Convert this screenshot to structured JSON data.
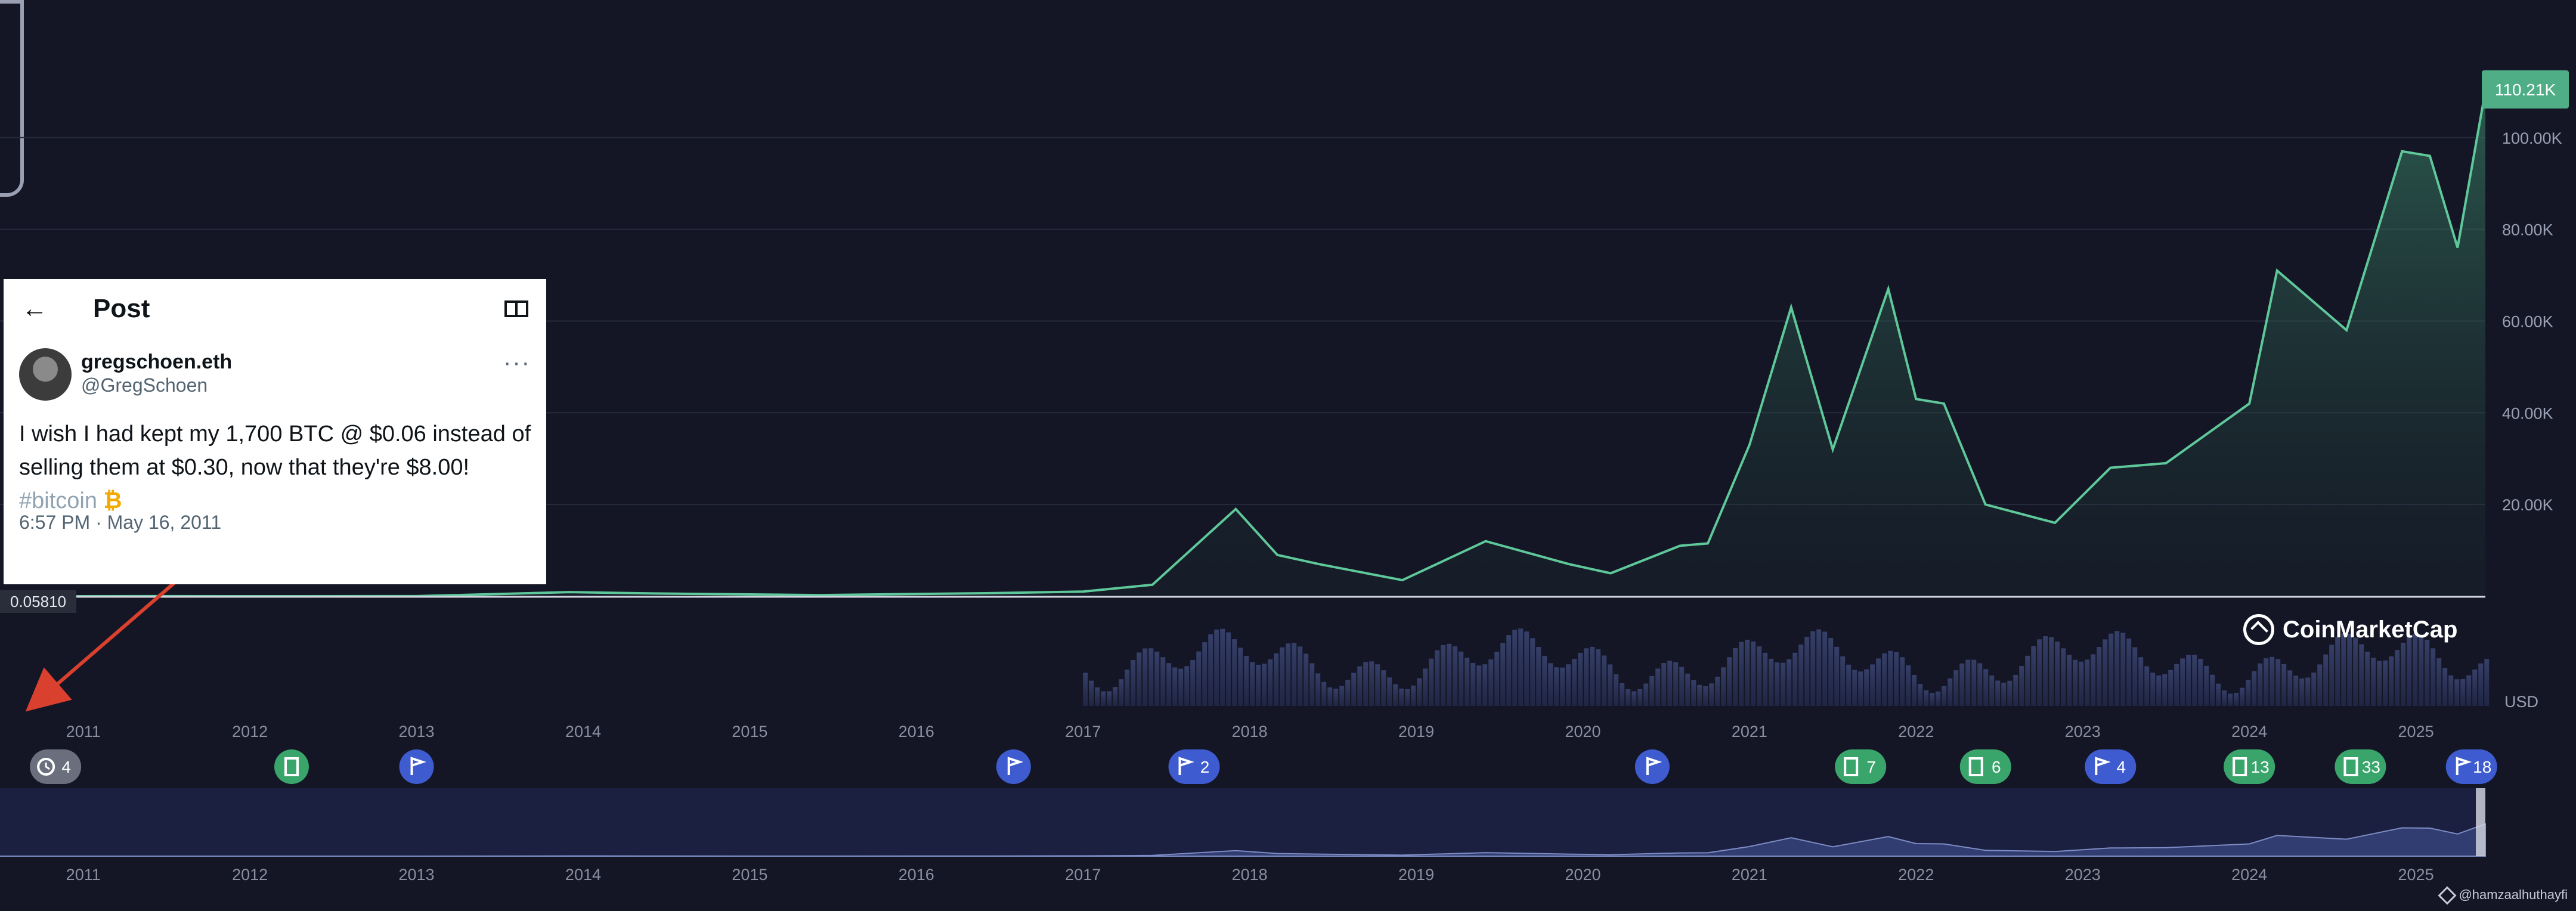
{
  "chart_data": {
    "type": "line",
    "title": "",
    "currency_label": "USD",
    "x": [
      "2010-07",
      "2011-01",
      "2011-06",
      "2012-01",
      "2013-01",
      "2013-12",
      "2014-06",
      "2015-06",
      "2016-06",
      "2017-01",
      "2017-06",
      "2017-12",
      "2018-03",
      "2018-06",
      "2018-12",
      "2019-06",
      "2019-12",
      "2020-03",
      "2020-08",
      "2020-10",
      "2021-01",
      "2021-04",
      "2021-07",
      "2021-11",
      "2022-01",
      "2022-03",
      "2022-06",
      "2022-11",
      "2023-03",
      "2023-07",
      "2024-01",
      "2024-03",
      "2024-08",
      "2024-12",
      "2025-02",
      "2025-04",
      "2025-06"
    ],
    "y": [
      0.06,
      0.3,
      15,
      5,
      15,
      900,
      600,
      250,
      650,
      1000,
      2500,
      19000,
      9000,
      7000,
      3500,
      12000,
      7000,
      5000,
      11000,
      11500,
      33000,
      63000,
      32000,
      67000,
      43000,
      42000,
      20000,
      16000,
      28000,
      29000,
      42000,
      71000,
      58000,
      97000,
      96000,
      76000,
      110210
    ],
    "y_ticks": [
      "20.00K",
      "40.00K",
      "60.00K",
      "80.00K",
      "100.00K"
    ],
    "y_tick_values": [
      20000,
      40000,
      60000,
      80000,
      100000
    ],
    "ylim": [
      0,
      130000
    ],
    "x_tick_labels": [
      "2011",
      "2012",
      "2013",
      "2014",
      "2015",
      "2016",
      "2017",
      "2018",
      "2019",
      "2020",
      "2021",
      "2022",
      "2023",
      "2024",
      "2025"
    ],
    "x_tick_dates": [
      "2011-01",
      "2012-01",
      "2013-01",
      "2014-01",
      "2015-01",
      "2016-01",
      "2017-01",
      "2018-01",
      "2019-01",
      "2020-01",
      "2021-01",
      "2022-01",
      "2023-01",
      "2024-01",
      "2025-01"
    ],
    "navigator_tick_labels": [
      "2011",
      "2012",
      "2013",
      "2014",
      "2015",
      "2016",
      "2017",
      "2018",
      "2019",
      "2020",
      "2021",
      "2022",
      "2023",
      "2024",
      "2025"
    ],
    "current_price_label": "110.21K",
    "start_price_label": "0.05810",
    "series_color": "#5fc89a",
    "grid": true,
    "event_markers": [
      {
        "type": "clock",
        "label": "4",
        "date": "2010-11",
        "color": "#6b6f7d"
      },
      {
        "type": "doc",
        "label": "",
        "date": "2012-04",
        "color": "#3aa56b"
      },
      {
        "type": "flag",
        "label": "",
        "date": "2013-01",
        "color": "#3e5ccf"
      },
      {
        "type": "flag",
        "label": "",
        "date": "2016-08",
        "color": "#3e5ccf"
      },
      {
        "type": "flag",
        "label": "2",
        "date": "2017-09",
        "color": "#3e5ccf"
      },
      {
        "type": "flag",
        "label": "",
        "date": "2020-06",
        "color": "#3e5ccf"
      },
      {
        "type": "doc",
        "label": "7",
        "date": "2021-09",
        "color": "#3aa56b"
      },
      {
        "type": "doc",
        "label": "6",
        "date": "2022-06",
        "color": "#3aa56b"
      },
      {
        "type": "flag",
        "label": "4",
        "date": "2023-03",
        "color": "#3e5ccf"
      },
      {
        "type": "doc",
        "label": "13",
        "date": "2024-01",
        "color": "#3aa56b"
      },
      {
        "type": "doc",
        "label": "33",
        "date": "2024-09",
        "color": "#3aa56b"
      },
      {
        "type": "flag",
        "label": "18",
        "date": "2025-05",
        "color": "#3e5ccf"
      }
    ]
  },
  "tweet": {
    "header_title": "Post",
    "back_glyph": "←",
    "author_name": "gregschoen.eth",
    "author_handle": "@GregSchoen",
    "more_glyph": "···",
    "text_line1": "I wish I had kept my 1,700 BTC @ $0.06 instead of",
    "text_line2": "selling them at $0.30, now that they're $8.00!",
    "hashtag": "#bitcoin",
    "btc_glyph": "₿",
    "timestamp": "6:57 PM · May 16, 2011"
  },
  "branding": {
    "name": "CoinMarketCap"
  },
  "watermark": {
    "text": "@hamzaalhuthayfi"
  },
  "colors": {
    "background": "#141625",
    "line": "#5fc89a",
    "arrow": "#d9402e",
    "current_price_badge": "#4fae86"
  }
}
